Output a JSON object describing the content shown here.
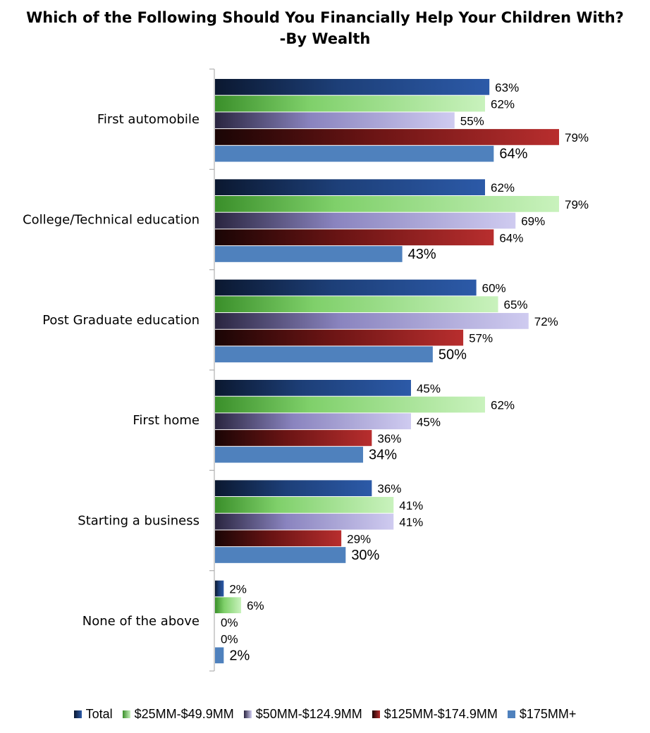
{
  "title_line1": "Which of the Following Should You Financially Help Your Children With?",
  "title_line2": "-By Wealth",
  "chart_data": {
    "type": "bar",
    "orientation": "horizontal",
    "title": "Which of the Following Should You Financially Help Your Children With? -By Wealth",
    "categories": [
      "First automobile",
      "College/Technical education",
      "Post Graduate education",
      "First home",
      "Starting a business",
      "None of the above"
    ],
    "series": [
      {
        "name": "Total",
        "values": [
          63,
          62,
          60,
          45,
          36,
          2
        ],
        "labels": [
          "63%",
          "62%",
          "60%",
          "45%",
          "36%",
          "2%"
        ],
        "color": "#1f4e9a"
      },
      {
        "name": "$25MM-$49.9MM",
        "values": [
          62,
          79,
          65,
          62,
          41,
          6
        ],
        "labels": [
          "62%",
          "79%",
          "65%",
          "62%",
          "41%",
          "6%"
        ],
        "color": "#7fcf6a"
      },
      {
        "name": "$50MM-$124.9MM",
        "values": [
          55,
          69,
          72,
          45,
          41,
          0
        ],
        "labels": [
          "55%",
          "69%",
          "72%",
          "45%",
          "41%",
          "0%"
        ],
        "color": "#a9a4d8"
      },
      {
        "name": "$125MM-$174.9MM",
        "values": [
          79,
          64,
          57,
          36,
          29,
          0
        ],
        "labels": [
          "79%",
          "64%",
          "57%",
          "36%",
          "29%",
          "0%"
        ],
        "color": "#a02727"
      },
      {
        "name": "$175MM+",
        "values": [
          64,
          43,
          50,
          34,
          30,
          2
        ],
        "labels": [
          "64%",
          "43%",
          "50%",
          "34%",
          "30%",
          "2%"
        ],
        "color": "#4f81bd"
      }
    ],
    "xlim": [
      0,
      79
    ],
    "grid": false,
    "legend_position": "bottom"
  }
}
